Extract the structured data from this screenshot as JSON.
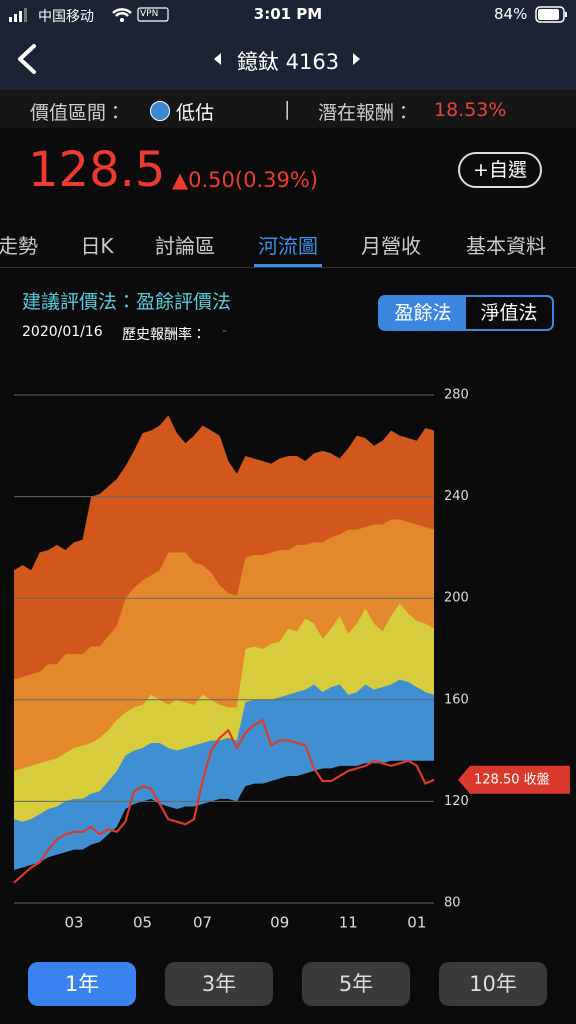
{
  "status_bar": {
    "carrier": "中国移动",
    "vpn": "VPN",
    "time": "3:01 PM",
    "battery": "84%"
  },
  "header": {
    "title": "鐿鈦 4163"
  },
  "valuation": {
    "label": "價值區間：",
    "status": "低估",
    "separator": "|",
    "return_label": "潛在報酬：",
    "return_value": "18.53%"
  },
  "quote": {
    "price": "128.5",
    "change": "▲0.50(0.39%)",
    "watch_button": "+自選"
  },
  "tabs": [
    "走勢",
    "日K",
    "討論區",
    "河流圖",
    "月營收",
    "基本資料"
  ],
  "method": {
    "title": "建議評價法：盈餘評價法",
    "toggles": [
      "盈餘法",
      "淨值法"
    ],
    "date": "2020/01/16",
    "history_label": "歷史報酬率：",
    "history_value": "-"
  },
  "chart_data": {
    "type": "river",
    "categories": [
      null,
      null,
      null,
      null,
      null,
      null,
      null,
      "03",
      null,
      null,
      null,
      null,
      null,
      null,
      null,
      "05",
      null,
      null,
      null,
      null,
      null,
      null,
      "07",
      null,
      null,
      null,
      null,
      null,
      null,
      null,
      null,
      "09",
      null,
      null,
      null,
      null,
      null,
      null,
      null,
      "11",
      null,
      null,
      null,
      null,
      null,
      null,
      null,
      "01",
      null,
      null
    ],
    "bands": [
      {
        "color": "#0b0b0c",
        "values": [
          93,
          94,
          95,
          96,
          98,
          99,
          100,
          101,
          101,
          103,
          104,
          107,
          110,
          117,
          119,
          120,
          121,
          119,
          118,
          117,
          118,
          118,
          119,
          120,
          121,
          121,
          120,
          126,
          127,
          127,
          128,
          129,
          130,
          130,
          131,
          132,
          133,
          133,
          134,
          134,
          134,
          135,
          135,
          135,
          136,
          136,
          136,
          136,
          136,
          136
        ]
      },
      {
        "color": "#3f8fd2",
        "values": [
          113,
          112,
          113,
          115,
          117,
          118,
          120,
          121,
          121,
          123,
          124,
          128,
          132,
          138,
          140,
          141,
          143,
          143,
          141,
          140,
          141,
          142,
          143,
          144,
          144,
          145,
          144,
          159,
          160,
          160,
          160,
          161,
          162,
          163,
          164,
          166,
          163,
          165,
          166,
          162,
          163,
          166,
          164,
          165,
          166,
          168,
          167,
          165,
          163,
          162
        ]
      },
      {
        "color": "#d6cc3c",
        "values": [
          132,
          133,
          134,
          135,
          136,
          137,
          139,
          141,
          142,
          143,
          145,
          148,
          152,
          155,
          157,
          158,
          162,
          160,
          158,
          160,
          159,
          158,
          162,
          160,
          158,
          157,
          157,
          180,
          181,
          180,
          182,
          183,
          188,
          187,
          192,
          190,
          184,
          188,
          193,
          186,
          190,
          196,
          190,
          187,
          193,
          198,
          194,
          191,
          190,
          188
        ]
      },
      {
        "color": "#e3892b",
        "values": [
          168,
          169,
          170,
          171,
          174,
          174,
          178,
          178,
          178,
          181,
          181,
          185,
          189,
          200,
          204,
          207,
          209,
          211,
          218,
          218,
          218,
          214,
          213,
          210,
          205,
          202,
          201,
          216,
          217,
          217,
          218,
          219,
          219,
          221,
          221,
          222,
          222,
          224,
          225,
          227,
          227,
          228,
          229,
          229,
          231,
          231,
          230,
          229,
          228,
          227
        ]
      },
      {
        "color": "#d2571c",
        "values": [
          211,
          213,
          211,
          218,
          219,
          221,
          219,
          222,
          223,
          240,
          241,
          244,
          247,
          252,
          258,
          265,
          266,
          268,
          272,
          265,
          261,
          264,
          268,
          266,
          264,
          254,
          249,
          256,
          255,
          254,
          253,
          255,
          256,
          256,
          254,
          257,
          258,
          257,
          255,
          259,
          264,
          263,
          260,
          262,
          266,
          264,
          263,
          262,
          267,
          266
        ]
      }
    ],
    "price": {
      "color": "#d93a2c",
      "values": [
        88,
        91,
        94,
        96,
        101,
        105,
        107,
        108,
        108,
        110,
        107,
        109,
        108,
        112,
        124,
        126,
        125,
        119,
        113,
        112,
        111,
        113,
        128,
        140,
        145,
        148,
        141,
        147,
        150,
        152,
        142,
        144,
        144,
        143,
        142,
        133,
        128,
        128,
        130,
        132,
        133,
        134,
        136,
        135,
        134,
        135,
        136,
        134,
        127,
        128.5
      ]
    },
    "annotation": "128.50 收盤",
    "ylim": [
      80,
      280
    ],
    "yticks": [
      80,
      120,
      160,
      200,
      240,
      280
    ],
    "grid": true
  },
  "periods": [
    "1年",
    "3年",
    "5年",
    "10年"
  ]
}
